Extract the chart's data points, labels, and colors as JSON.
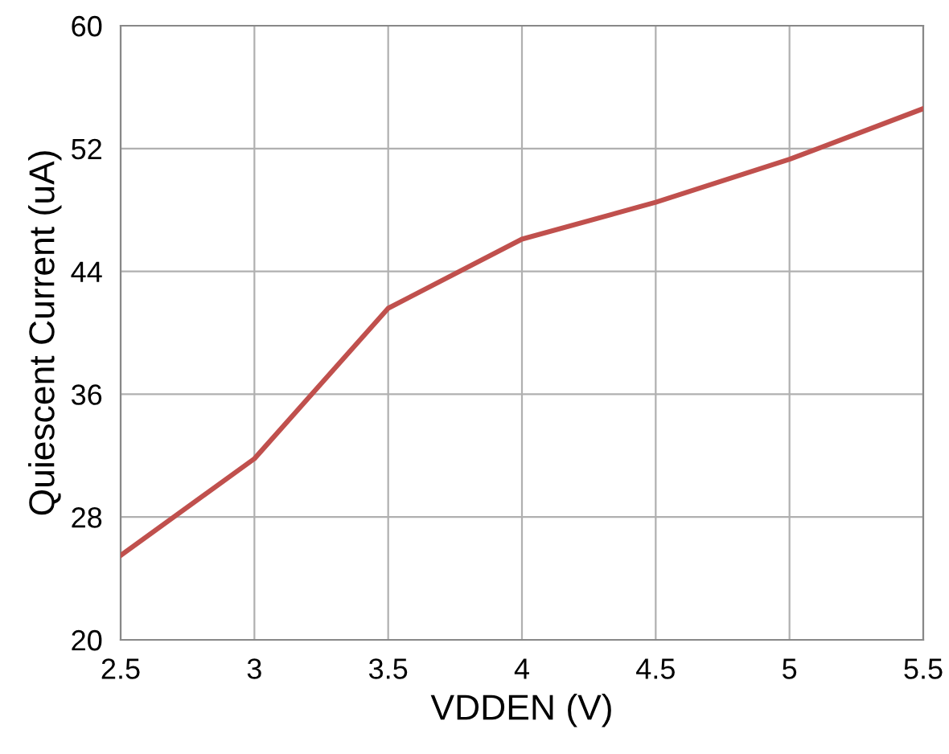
{
  "chart_data": {
    "type": "line",
    "xlabel": "VDDEN (V)",
    "ylabel": "Quiescent Current (uA)",
    "x": [
      2.5,
      3,
      3.5,
      4,
      4.5,
      5,
      5.5
    ],
    "series": [
      {
        "color": "#c0504d",
        "values": [
          25.5,
          31.8,
          41.6,
          46.1,
          48.5,
          51.3,
          54.6
        ]
      }
    ],
    "xlim": [
      2.5,
      5.5
    ],
    "xticks": [
      2.5,
      3,
      3.5,
      4,
      4.5,
      5,
      5.5
    ],
    "ylim": [
      20,
      60
    ],
    "yticks": [
      20,
      28,
      36,
      44,
      52,
      60
    ],
    "grid": true,
    "marker": "none",
    "line_style": "solid"
  }
}
